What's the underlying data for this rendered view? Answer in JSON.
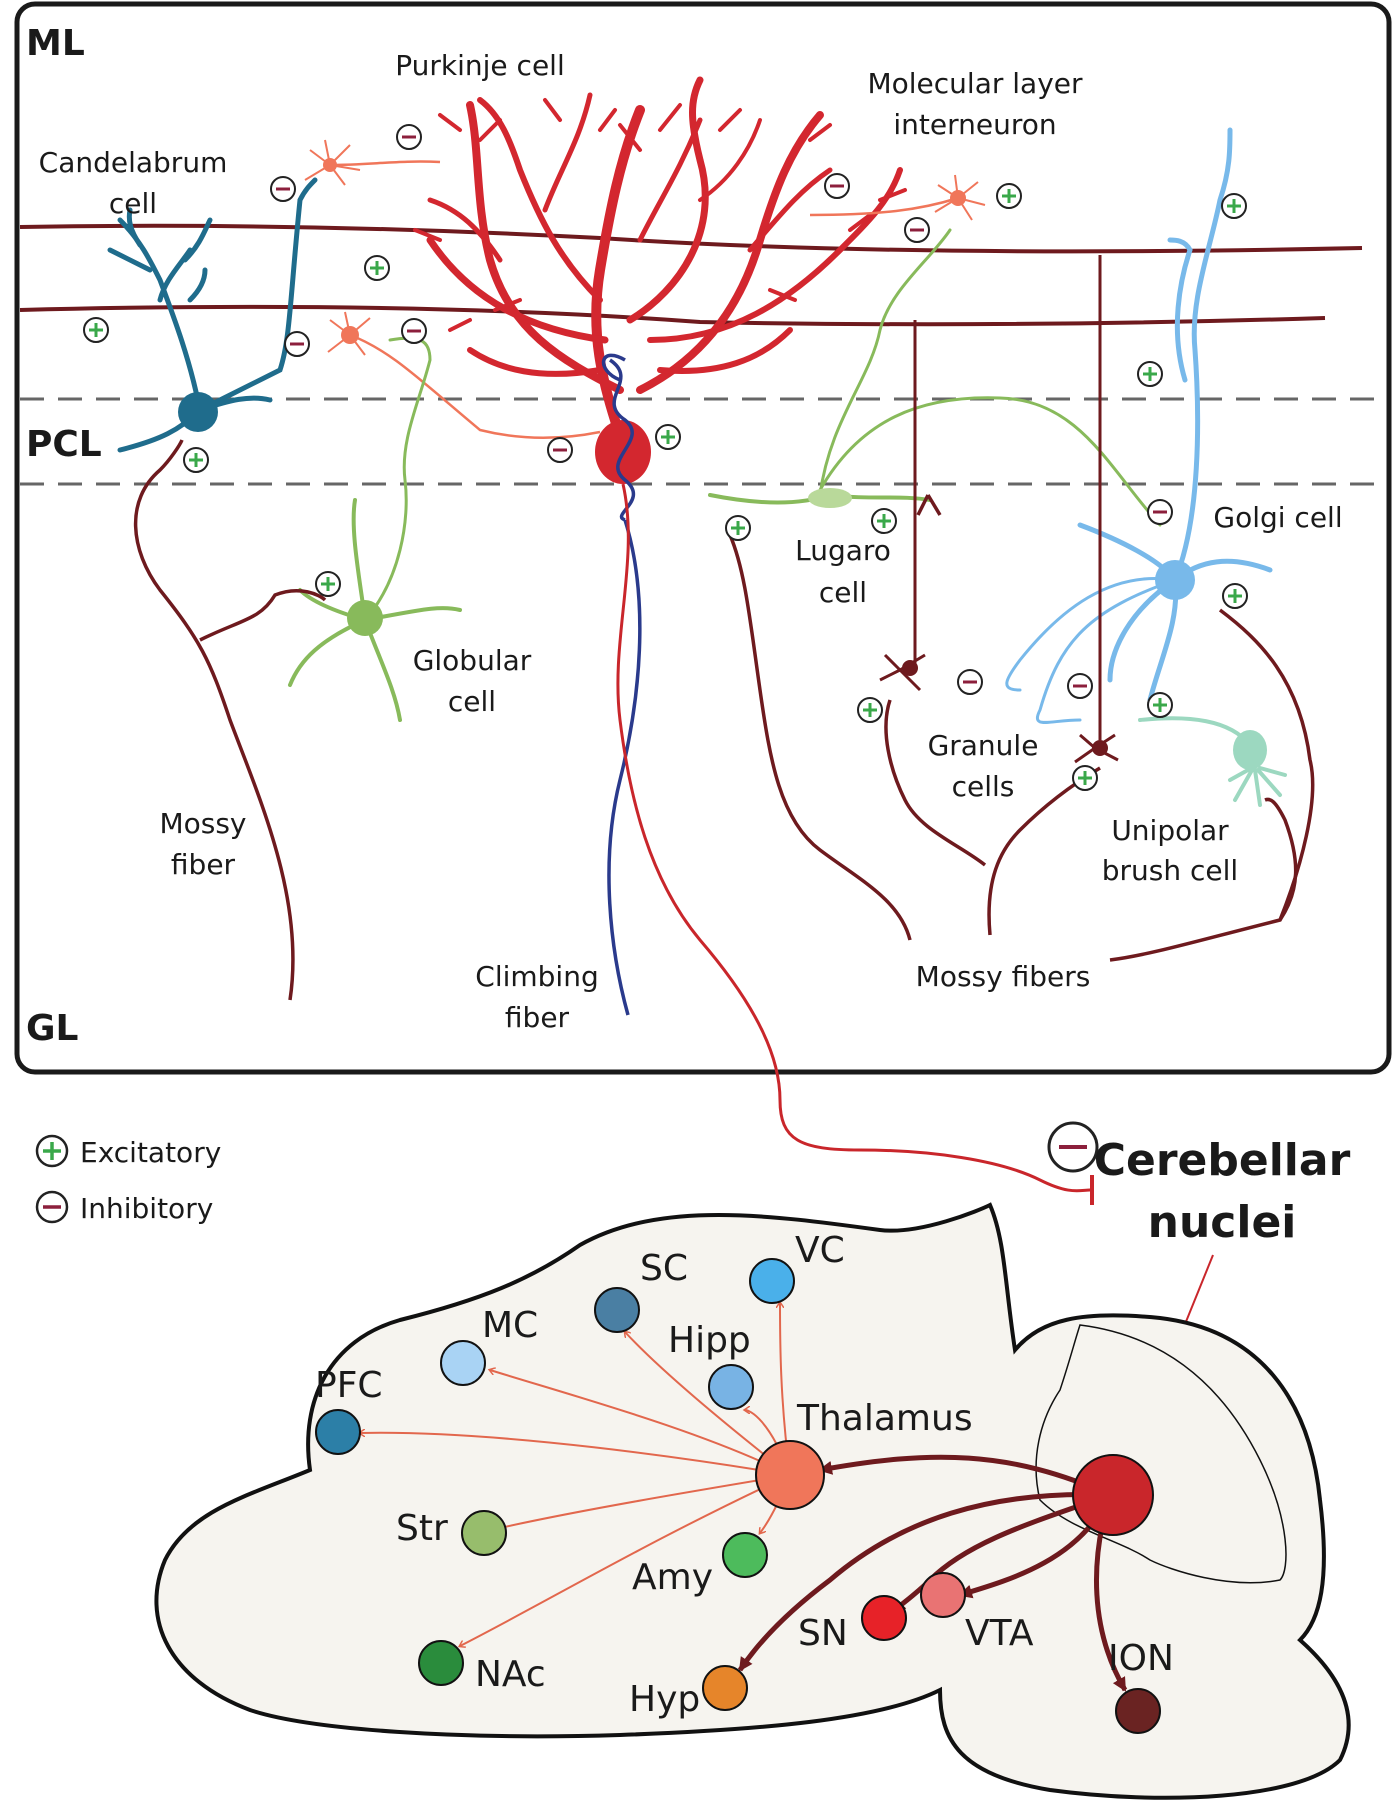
{
  "layers": {
    "ml": "ML",
    "pcl": "PCL",
    "gl": "GL"
  },
  "cells": {
    "purkinje": "Purkinje cell",
    "molecular_1": "Molecular layer",
    "molecular_2": "interneuron",
    "candelabrum_1": "Candelabrum",
    "candelabrum_2": "cell",
    "golgi": "Golgi cell",
    "lugaro_1": "Lugaro",
    "lugaro_2": "cell",
    "globular_1": "Globular",
    "globular_2": "cell",
    "granule_1": "Granule",
    "granule_2": "cells",
    "unipolar_1": "Unipolar",
    "unipolar_2": "brush cell",
    "mossy_1": "Mossy",
    "mossy_2": "fiber",
    "mossy_fibers": "Mossy fibers",
    "climbing_1": "Climbing",
    "climbing_2": "fiber"
  },
  "legend": {
    "excitatory": "Excitatory",
    "inhibitory": "Inhibitory"
  },
  "nuclei": {
    "line1": "Cerebellar",
    "line2": "nuclei"
  },
  "regions": {
    "vc": "VC",
    "sc": "SC",
    "mc": "MC",
    "hipp": "Hipp",
    "pfc": "PFC",
    "thalamus": "Thalamus",
    "str": "Str",
    "amy": "Amy",
    "nac": "NAc",
    "hyp": "Hyp",
    "sn": "SN",
    "vta": "VTA",
    "ion": "ION"
  },
  "colors": {
    "dark_red": "#6e1a1e",
    "purkinje": "#d3272f",
    "thalamus": "#f0765a",
    "cn": "#c9262b",
    "excitatory": "#3aa84a",
    "inhibitory": "#8c1f3c",
    "vc": "#4ab0ea",
    "sc": "#4a7fa3",
    "mc": "#a9d3f4",
    "hipp": "#78b3e4",
    "pfc": "#2c7fa7",
    "str": "#97bd6c",
    "amy": "#4dbb5c",
    "nac": "#2a8c3c",
    "hyp": "#e6852a",
    "sn": "#e72228",
    "vta": "#e97373",
    "ion": "#6a2322"
  }
}
